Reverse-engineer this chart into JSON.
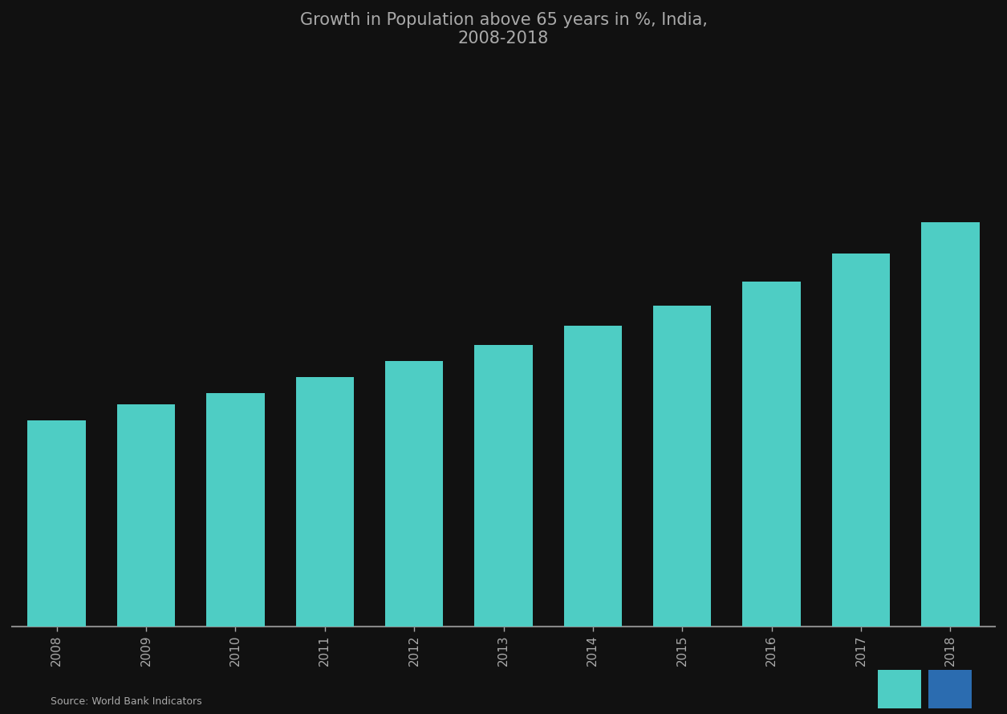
{
  "title_line1": "Growth in Population above 65 years in %, India,",
  "title_line2": "2008-2018",
  "years": [
    "2008",
    "2009",
    "2010",
    "2011",
    "2012",
    "2013",
    "2014",
    "2015",
    "2016",
    "2017",
    "2018"
  ],
  "values": [
    5.2,
    5.6,
    5.9,
    6.3,
    6.7,
    7.1,
    7.6,
    8.1,
    8.7,
    9.4,
    10.2
  ],
  "bar_color": "#4ECDC4",
  "background_color": "#111111",
  "text_color": "#aaaaaa",
  "axis_color": "#888888",
  "source_text": "Source: World Bank Indicators",
  "ylim": [
    0,
    14
  ]
}
